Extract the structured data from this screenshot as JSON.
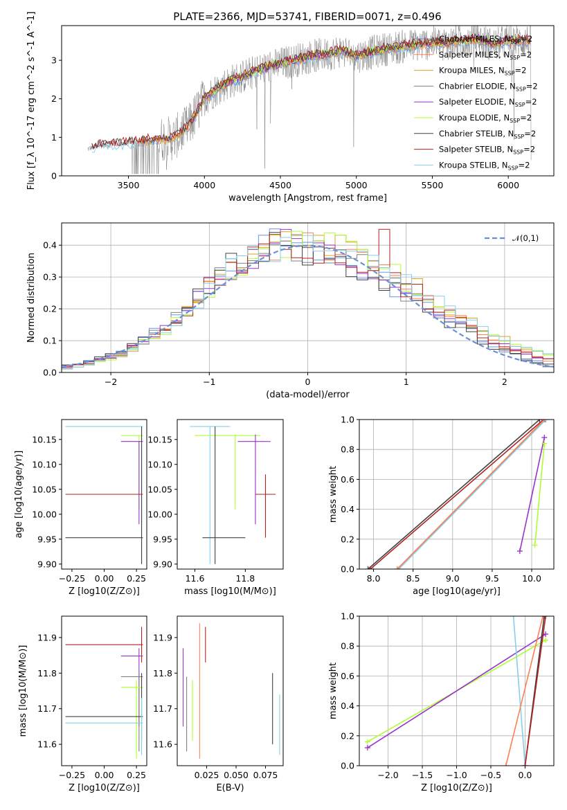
{
  "figure_title": "PLATE=2366, MJD=53741, FIBERID=0071, z=0.496",
  "colors": {
    "chabrier_miles": "#6495ED",
    "salpeter_miles": "#FF7F50",
    "kroupa_miles": "#DAA520",
    "chabrier_elodie": "#808080",
    "salpeter_elodie": "#9932CC",
    "kroupa_elodie": "#ADFF2F",
    "chabrier_stelib": "#404040",
    "salpeter_stelib": "#B22222",
    "kroupa_stelib": "#87CEEB",
    "gaussian": "#6A8FD6",
    "data": "#808080"
  },
  "chart_data": [
    {
      "id": "spectrum",
      "type": "line",
      "title": "PLATE=2366, MJD=53741, FIBERID=0071, z=0.496",
      "xlabel": "wavelength [Angstrom, rest frame]",
      "ylabel": "Flux [f_λ 10^-17 erg cm^-2 s^-1 A^-1]",
      "xlim": [
        3060,
        6300
      ],
      "ylim": [
        0,
        3.9
      ],
      "xticks": [
        "3500",
        "4000",
        "4500",
        "5000",
        "5500",
        "6000"
      ],
      "yticks": [
        "0",
        "1",
        "2",
        "3"
      ],
      "legend_position": "upper right",
      "legend": [
        "Chabrier MILES, N_SSP=2",
        "Salpeter MILES, N_SSP=2",
        "Kroupa MILES, N_SSP=2",
        "Chabrier ELODIE, N_SSP=2",
        "Salpeter ELODIE, N_SSP=2",
        "Kroupa ELODIE, N_SSP=2",
        "Chabrier STELIB, N_SSP=2",
        "Salpeter STELIB, N_SSP=2",
        "Kroupa STELIB, N_SSP=2"
      ],
      "model_continuum": {
        "x": [
          3230,
          3300,
          3400,
          3500,
          3600,
          3700,
          3800,
          3900,
          4000,
          4100,
          4200,
          4300,
          4400,
          4500,
          4600,
          4700,
          4800,
          4900,
          5000,
          5100,
          5200,
          5300,
          5400,
          5500,
          5600,
          5700,
          5800,
          5900,
          6000,
          6100,
          6150
        ],
        "y": [
          0.7,
          0.78,
          0.82,
          0.85,
          0.9,
          0.95,
          0.98,
          1.3,
          2.0,
          2.3,
          2.5,
          2.65,
          2.8,
          2.9,
          3.0,
          3.1,
          3.15,
          3.25,
          3.1,
          3.2,
          3.3,
          3.35,
          3.4,
          3.45,
          3.45,
          3.5,
          3.55,
          3.4,
          3.5,
          3.5,
          3.5
        ]
      }
    },
    {
      "id": "residuals",
      "type": "line",
      "xlabel": "(data-model)/error",
      "ylabel": "Normed distribution",
      "xlim": [
        -2.5,
        2.5
      ],
      "ylim": [
        0,
        0.47
      ],
      "xticks": [
        "−2",
        "−1",
        "0",
        "1",
        "2"
      ],
      "yticks": [
        "0.0",
        "0.1",
        "0.2",
        "0.3",
        "0.4"
      ],
      "legend": [
        "𝒩(0,1)"
      ],
      "grid": true,
      "histogram_shape": [
        0.017,
        0.022,
        0.03,
        0.04,
        0.05,
        0.06,
        0.08,
        0.1,
        0.12,
        0.14,
        0.17,
        0.2,
        0.23,
        0.27,
        0.3,
        0.33,
        0.35,
        0.37,
        0.39,
        0.4,
        0.41,
        0.41,
        0.4,
        0.39,
        0.38,
        0.37,
        0.36,
        0.35,
        0.33,
        0.31,
        0.29,
        0.27,
        0.25,
        0.22,
        0.2,
        0.18,
        0.16,
        0.14,
        0.12,
        0.1,
        0.085,
        0.07,
        0.06,
        0.05,
        0.04
      ]
    },
    {
      "id": "age_vs_Z",
      "type": "scatter",
      "xlabel": "Z [log10(Z/Z⊙)]",
      "ylabel": "age  [log10(age/yr)]",
      "xlim": [
        -0.33,
        0.33
      ],
      "ylim": [
        9.89,
        10.19
      ],
      "xticks": [
        "−0.25",
        "0.00",
        "0.25"
      ],
      "yticks": [
        "9.90",
        "9.95",
        "10.00",
        "10.05",
        "10.10",
        "10.15"
      ],
      "points": [
        {
          "x": 0.29,
          "y": 10.176,
          "xlo": -0.3,
          "xhi": 0.3,
          "ylo": 9.9,
          "yhi": 10.176,
          "c": "kroupa_stelib"
        },
        {
          "x": 0.27,
          "y": 10.158,
          "xlo": 0.13,
          "xhi": 0.3,
          "ylo": 10.01,
          "yhi": 10.158,
          "c": "kroupa_elodie"
        },
        {
          "x": 0.27,
          "y": 10.146,
          "xlo": 0.13,
          "xhi": 0.3,
          "ylo": 9.98,
          "yhi": 10.146,
          "c": "salpeter_elodie"
        },
        {
          "x": 0.29,
          "y": 10.04,
          "xlo": -0.3,
          "xhi": 0.3,
          "ylo": 10.04,
          "yhi": 10.04,
          "c": "salpeter_stelib"
        },
        {
          "x": 0.29,
          "y": 9.953,
          "xlo": -0.3,
          "xhi": 0.3,
          "ylo": 9.9,
          "yhi": 10.176,
          "c": "chabrier_stelib"
        }
      ]
    },
    {
      "id": "age_vs_mass",
      "type": "scatter",
      "xlabel": "mass [log10(M/M⊙)]",
      "ylabel": "",
      "xlim": [
        11.53,
        11.95
      ],
      "ylim": [
        9.89,
        10.19
      ],
      "xticks": [
        "11.6",
        "11.8"
      ],
      "yticks": [
        "9.90",
        "9.95",
        "10.00",
        "10.05",
        "10.10",
        "10.15"
      ],
      "points": [
        {
          "x": 11.66,
          "y": 10.176,
          "xlo": 11.58,
          "xhi": 11.74,
          "ylo": 9.9,
          "yhi": 10.176,
          "c": "kroupa_stelib"
        },
        {
          "x": 11.76,
          "y": 10.158,
          "xlo": 11.6,
          "xhi": 11.86,
          "ylo": 10.01,
          "yhi": 10.16,
          "c": "kroupa_elodie"
        },
        {
          "x": 11.84,
          "y": 10.146,
          "xlo": 11.77,
          "xhi": 11.9,
          "ylo": 9.98,
          "yhi": 10.16,
          "c": "salpeter_elodie"
        },
        {
          "x": 11.88,
          "y": 10.04,
          "xlo": 11.84,
          "xhi": 11.92,
          "ylo": 9.953,
          "yhi": 10.08,
          "c": "salpeter_stelib"
        },
        {
          "x": 11.68,
          "y": 9.953,
          "xlo": 11.63,
          "xhi": 11.8,
          "ylo": 9.9,
          "yhi": 10.176,
          "c": "chabrier_stelib"
        }
      ]
    },
    {
      "id": "massweight_vs_age",
      "type": "line",
      "xlabel": "age  [log10(age/yr)]",
      "ylabel": "mass weight",
      "xlim": [
        7.82,
        10.28
      ],
      "ylim": [
        0,
        1
      ],
      "xticks": [
        "8.0",
        "8.5",
        "9.0",
        "9.5",
        "10.0"
      ],
      "yticks": [
        "0.0",
        "0.2",
        "0.4",
        "0.6",
        "0.8",
        "1.0"
      ],
      "grid": true,
      "series": [
        {
          "c": "chabrier_stelib",
          "x": [
            7.93,
            10.1
          ],
          "y": [
            0.0,
            1.0
          ]
        },
        {
          "c": "salpeter_stelib",
          "x": [
            7.96,
            10.15
          ],
          "y": [
            0.0,
            1.0
          ]
        },
        {
          "c": "chabrier_elodie",
          "x": [
            8.3,
            10.17
          ],
          "y": [
            0.0,
            1.0
          ]
        },
        {
          "c": "kroupa_stelib",
          "x": [
            8.32,
            10.18
          ],
          "y": [
            0.0,
            1.0
          ]
        },
        {
          "c": "salpeter_miles",
          "x": [
            8.3,
            10.16
          ],
          "y": [
            0.0,
            1.0
          ]
        },
        {
          "c": "salpeter_elodie",
          "x": [
            9.85,
            10.16
          ],
          "y": [
            0.12,
            0.88
          ]
        },
        {
          "c": "kroupa_elodie",
          "x": [
            10.04,
            10.16
          ],
          "y": [
            0.16,
            0.84
          ]
        }
      ]
    },
    {
      "id": "mass_vs_Z",
      "type": "scatter",
      "xlabel": "Z [log10(Z/Z⊙)]",
      "ylabel": "mass [log10(M/M⊙)]",
      "xlim": [
        -0.33,
        0.33
      ],
      "ylim": [
        11.54,
        11.96
      ],
      "xticks": [
        "−0.25",
        "0.00",
        "0.25"
      ],
      "yticks": [
        "11.6",
        "11.7",
        "11.8",
        "11.9"
      ],
      "points": [
        {
          "x": 0.29,
          "y": 11.88,
          "xlo": -0.3,
          "xhi": 0.3,
          "ylo": 11.83,
          "yhi": 11.93,
          "c": "salpeter_stelib"
        },
        {
          "x": 0.27,
          "y": 11.848,
          "xlo": 0.13,
          "xhi": 0.3,
          "ylo": 11.65,
          "yhi": 11.87,
          "c": "salpeter_elodie"
        },
        {
          "x": 0.27,
          "y": 11.79,
          "xlo": 0.13,
          "xhi": 0.3,
          "ylo": 11.58,
          "yhi": 11.8,
          "c": "chabrier_elodie"
        },
        {
          "x": 0.25,
          "y": 11.76,
          "xlo": 0.13,
          "xhi": 0.3,
          "ylo": 11.56,
          "yhi": 11.78,
          "c": "kroupa_elodie"
        },
        {
          "x": 0.29,
          "y": 11.678,
          "xlo": -0.3,
          "xhi": 0.3,
          "ylo": 11.61,
          "yhi": 11.8,
          "c": "chabrier_stelib"
        },
        {
          "x": 0.29,
          "y": 11.66,
          "xlo": -0.3,
          "xhi": 0.3,
          "ylo": 11.57,
          "yhi": 11.73,
          "c": "kroupa_stelib"
        }
      ]
    },
    {
      "id": "mass_vs_ebv",
      "type": "scatter",
      "xlabel": "E(B-V)",
      "ylabel": "",
      "xlim": [
        0.0,
        0.09
      ],
      "ylim": [
        11.54,
        11.96
      ],
      "xticks": [
        "0.025",
        "0.050",
        "0.075"
      ],
      "yticks": [
        "11.6",
        "11.7",
        "11.8",
        "11.9"
      ],
      "points": [
        {
          "x": 0.005,
          "y": 11.76,
          "ylo": 11.65,
          "yhi": 11.87,
          "c": "salpeter_elodie"
        },
        {
          "x": 0.008,
          "y": 11.69,
          "ylo": 11.58,
          "yhi": 11.79,
          "c": "chabrier_elodie"
        },
        {
          "x": 0.013,
          "y": 11.7,
          "ylo": 11.61,
          "yhi": 11.78,
          "c": "kroupa_elodie"
        },
        {
          "x": 0.019,
          "y": 11.85,
          "ylo": 11.56,
          "yhi": 11.94,
          "c": "salpeter_miles"
        },
        {
          "x": 0.024,
          "y": 11.88,
          "ylo": 11.83,
          "yhi": 11.93,
          "c": "salpeter_stelib"
        },
        {
          "x": 0.081,
          "y": 11.7,
          "ylo": 11.6,
          "yhi": 11.8,
          "c": "chabrier_stelib"
        },
        {
          "x": 0.087,
          "y": 11.65,
          "ylo": 11.57,
          "yhi": 11.74,
          "c": "kroupa_stelib"
        }
      ]
    },
    {
      "id": "massweight_vs_Z",
      "type": "line",
      "xlabel": "Z [log10(Z/Z⊙)]",
      "ylabel": "mass weight",
      "xlim": [
        -2.42,
        0.42
      ],
      "ylim": [
        0,
        1
      ],
      "xticks": [
        "−2.0",
        "−1.5",
        "−1.0",
        "−0.5",
        "0.0"
      ],
      "yticks": [
        "0.0",
        "0.2",
        "0.4",
        "0.6",
        "0.8",
        "1.0"
      ],
      "grid": true,
      "series": [
        {
          "c": "kroupa_elodie",
          "x": [
            -2.3,
            0.3
          ],
          "y": [
            0.16,
            0.84
          ]
        },
        {
          "c": "salpeter_elodie",
          "x": [
            -2.3,
            0.3
          ],
          "y": [
            0.12,
            0.88
          ]
        },
        {
          "c": "kroupa_stelib",
          "x": [
            -0.17,
            0.0
          ],
          "y": [
            1.0,
            0.0
          ]
        },
        {
          "c": "salpeter_miles",
          "x": [
            -0.28,
            0.26
          ],
          "y": [
            0.0,
            1.0
          ]
        },
        {
          "c": "chabrier_stelib",
          "x": [
            0.0,
            0.28
          ],
          "y": [
            0.0,
            1.0
          ]
        },
        {
          "c": "salpeter_stelib",
          "x": [
            0.0,
            0.3
          ],
          "y": [
            0.0,
            1.0
          ]
        }
      ]
    }
  ]
}
